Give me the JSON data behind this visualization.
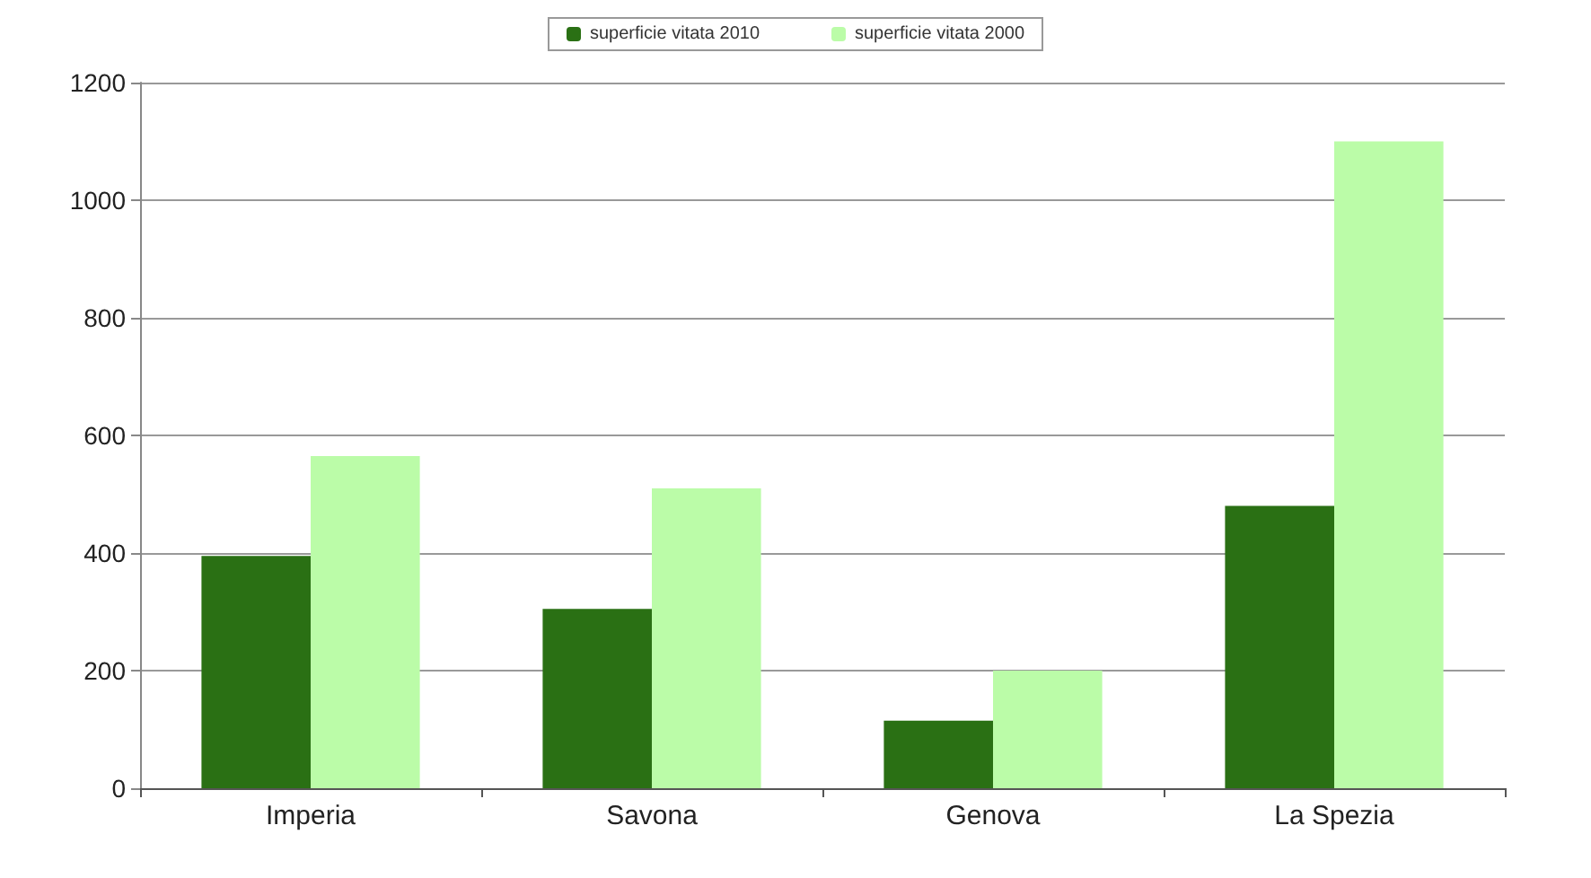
{
  "chart_data": {
    "type": "bar",
    "categories": [
      "Imperia",
      "Savona",
      "Genova",
      "La Spezia"
    ],
    "series": [
      {
        "name": "superficie vitata 2010",
        "color": "#2a7014",
        "values": [
          395,
          305,
          115,
          480
        ]
      },
      {
        "name": "superficie vitata 2000",
        "color": "#bbfca8",
        "values": [
          565,
          510,
          200,
          1100
        ]
      }
    ],
    "ylim": [
      0,
      1200
    ],
    "yticks": [
      0,
      200,
      400,
      600,
      800,
      1000,
      1200
    ],
    "grid": "y",
    "legend": "top"
  }
}
